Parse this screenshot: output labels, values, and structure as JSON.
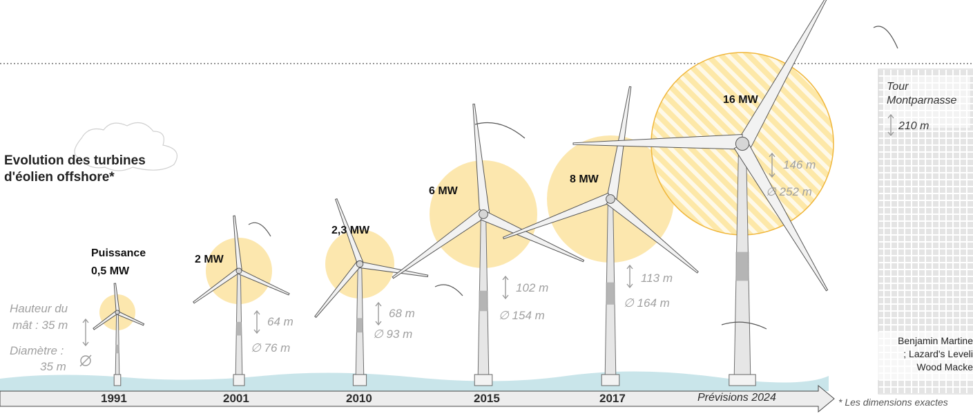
{
  "title": {
    "line1": "Evolution des turbines",
    "line2": "d'éolien offshore*"
  },
  "legend": {
    "puissance_label": "Puissance",
    "hauteur_line1": "Hauteur du",
    "hauteur_line2": "mât : 35 m",
    "diametre_line1": "Diamètre :",
    "diametre_line2": "35 m"
  },
  "turbines": [
    {
      "year": "1991",
      "power": "0,5 MW",
      "mast_height": "35 m",
      "rotor_diameter": "35 m"
    },
    {
      "year": "2001",
      "power": "2 MW",
      "mast_height": "64 m",
      "rotor_diameter": "∅ 76 m"
    },
    {
      "year": "2010",
      "power": "2,3 MW",
      "mast_height": "68 m",
      "rotor_diameter": "∅ 93 m"
    },
    {
      "year": "2015",
      "power": "6 MW",
      "mast_height": "102 m",
      "rotor_diameter": "∅ 154 m"
    },
    {
      "year": "2017",
      "power": "8 MW",
      "mast_height": "113 m",
      "rotor_diameter": "∅ 164 m"
    },
    {
      "year": "Prévisions 2024",
      "power": "16 MW",
      "mast_height": "146 m",
      "rotor_diameter": "∅ 252 m"
    }
  ],
  "reference": {
    "line1": "Tour",
    "line2": "Montparnasse",
    "height": "210 m"
  },
  "credits": {
    "line1": "Benjamin Martine",
    "line2": "; Lazard's Leveli",
    "line3": "Wood Macke"
  },
  "footnote": "* Les dimensions exactes",
  "colors": {
    "halo": "#fbe3a0",
    "halo_edge": "#f0b63a",
    "sea": "#bfe0e6",
    "tower": "#e6e6e6",
    "tower_dark": "#a9a9a9",
    "axis": "#d9d9d9",
    "dim_text": "#a0a0a0"
  }
}
